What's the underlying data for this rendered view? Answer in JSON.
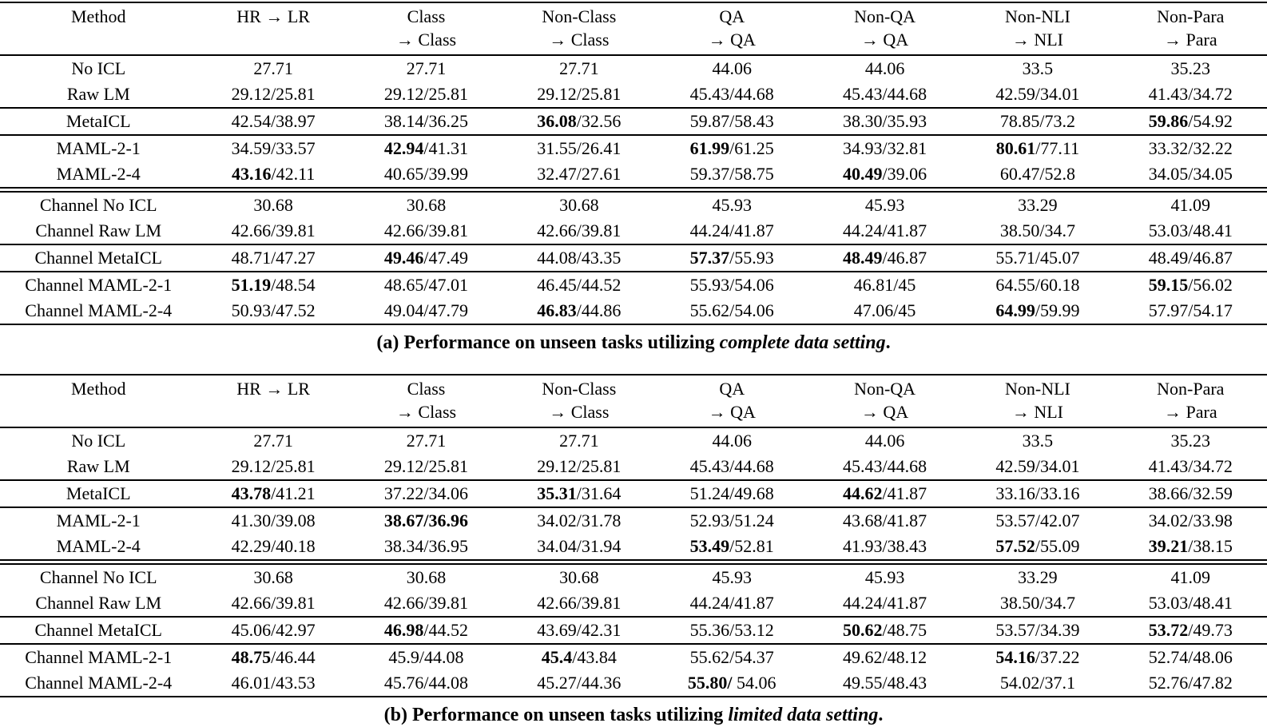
{
  "colors": {
    "background": "#ffffff",
    "text": "#000000"
  },
  "tables": [
    {
      "name": "complete-data-setting-table",
      "columns": [
        {
          "line1": "Method",
          "line2": ""
        },
        {
          "line1": "HR → LR",
          "line2": ""
        },
        {
          "line1": "Class",
          "line2": "→ Class"
        },
        {
          "line1": "Non-Class",
          "line2": "→ Class"
        },
        {
          "line1": "QA",
          "line2": "→ QA"
        },
        {
          "line1": "Non-QA",
          "line2": "→ QA"
        },
        {
          "line1": "Non-NLI",
          "line2": "→ NLI"
        },
        {
          "line1": "Non-Para",
          "line2": "→ Para"
        }
      ],
      "groups": [
        {
          "top_rule": "single",
          "rows": [
            {
              "method": "No ICL",
              "cells": [
                "27.71",
                "27.71",
                "27.71",
                "44.06",
                "44.06",
                "33.5",
                "35.23"
              ]
            },
            {
              "method": "Raw LM",
              "cells": [
                "29.12/25.81",
                "29.12/25.81",
                "29.12/25.81",
                "45.43/44.68",
                "45.43/44.68",
                "42.59/34.01",
                "41.43/34.72"
              ]
            }
          ]
        },
        {
          "top_rule": "single",
          "rows": [
            {
              "method": "MetaICL",
              "cells": [
                "42.54/38.97",
                "38.14/36.25",
                "**36.08**/32.56",
                "59.87/58.43",
                "38.30/35.93",
                "78.85/73.2",
                "**59.86**/54.92"
              ]
            }
          ]
        },
        {
          "top_rule": "single",
          "rows": [
            {
              "method": "MAML-2-1",
              "cells": [
                "34.59/33.57",
                "**42.94**/41.31",
                "31.55/26.41",
                "**61.99**/61.25",
                "34.93/32.81",
                "**80.61**/77.11",
                "33.32/32.22"
              ]
            },
            {
              "method": "MAML-2-4",
              "cells": [
                "**43.16**/42.11",
                "40.65/39.99",
                "32.47/27.61",
                "59.37/58.75",
                "**40.49**/39.06",
                "60.47/52.8",
                "34.05/34.05"
              ]
            }
          ]
        },
        {
          "top_rule": "double",
          "rows": [
            {
              "method": "Channel No ICL",
              "cells": [
                "30.68",
                "30.68",
                "30.68",
                "45.93",
                "45.93",
                "33.29",
                "41.09"
              ]
            },
            {
              "method": "Channel Raw LM",
              "cells": [
                "42.66/39.81",
                "42.66/39.81",
                "42.66/39.81",
                "44.24/41.87",
                "44.24/41.87",
                "38.50/34.7",
                "53.03/48.41"
              ]
            }
          ]
        },
        {
          "top_rule": "single",
          "rows": [
            {
              "method": "Channel MetaICL",
              "cells": [
                "48.71/47.27",
                "**49.46**/47.49",
                "44.08/43.35",
                "**57.37**/55.93",
                "**48.49**/46.87",
                "55.71/45.07",
                "48.49/46.87"
              ]
            }
          ]
        },
        {
          "top_rule": "single",
          "rows": [
            {
              "method": "Channel MAML-2-1",
              "cells": [
                "**51.19**/48.54",
                "48.65/47.01",
                "46.45/44.52",
                "55.93/54.06",
                "46.81/45",
                "64.55/60.18",
                "**59.15**/56.02"
              ]
            },
            {
              "method": "Channel MAML-2-4",
              "cells": [
                "50.93/47.52",
                "49.04/47.79",
                "**46.83**/44.86",
                "55.62/54.06",
                "47.06/45",
                "**64.99**/59.99",
                "57.97/54.17"
              ]
            }
          ]
        }
      ],
      "caption": {
        "prefix": "(a) Performance on unseen tasks utilizing ",
        "italic": "complete data setting",
        "suffix": "."
      }
    },
    {
      "name": "limited-data-setting-table",
      "columns": [
        {
          "line1": "Method",
          "line2": ""
        },
        {
          "line1": "HR → LR",
          "line2": ""
        },
        {
          "line1": "Class",
          "line2": "→ Class"
        },
        {
          "line1": "Non-Class",
          "line2": "→ Class"
        },
        {
          "line1": "QA",
          "line2": "→ QA"
        },
        {
          "line1": "Non-QA",
          "line2": "→ QA"
        },
        {
          "line1": "Non-NLI",
          "line2": "→ NLI"
        },
        {
          "line1": "Non-Para",
          "line2": "→ Para"
        }
      ],
      "groups": [
        {
          "top_rule": "single",
          "rows": [
            {
              "method": "No ICL",
              "cells": [
                "27.71",
                "27.71",
                "27.71",
                "44.06",
                "44.06",
                "33.5",
                "35.23"
              ]
            },
            {
              "method": "Raw LM",
              "cells": [
                "29.12/25.81",
                "29.12/25.81",
                "29.12/25.81",
                "45.43/44.68",
                "45.43/44.68",
                "42.59/34.01",
                "41.43/34.72"
              ]
            }
          ]
        },
        {
          "top_rule": "single",
          "rows": [
            {
              "method": "MetaICL",
              "cells": [
                "**43.78**/41.21",
                "37.22/34.06",
                "**35.31**/31.64",
                "51.24/49.68",
                "**44.62**/41.87",
                "33.16/33.16",
                "38.66/32.59"
              ]
            }
          ]
        },
        {
          "top_rule": "single",
          "rows": [
            {
              "method": "MAML-2-1",
              "cells": [
                "41.30/39.08",
                "**38.67/36.96**",
                "34.02/31.78",
                "52.93/51.24",
                "43.68/41.87",
                "53.57/42.07",
                "34.02/33.98"
              ]
            },
            {
              "method": "MAML-2-4",
              "cells": [
                "42.29/40.18",
                "38.34/36.95",
                "34.04/31.94",
                "**53.49**/52.81",
                "41.93/38.43",
                "**57.52**/55.09",
                "**39.21**/38.15"
              ]
            }
          ]
        },
        {
          "top_rule": "double",
          "rows": [
            {
              "method": "Channel No ICL",
              "cells": [
                "30.68",
                "30.68",
                "30.68",
                "45.93",
                "45.93",
                "33.29",
                "41.09"
              ]
            },
            {
              "method": "Channel Raw LM",
              "cells": [
                "42.66/39.81",
                "42.66/39.81",
                "42.66/39.81",
                "44.24/41.87",
                "44.24/41.87",
                "38.50/34.7",
                "53.03/48.41"
              ]
            }
          ]
        },
        {
          "top_rule": "single",
          "rows": [
            {
              "method": "Channel MetaICL",
              "cells": [
                "45.06/42.97",
                "**46.98**/44.52",
                "43.69/42.31",
                "55.36/53.12",
                "**50.62**/48.75",
                "53.57/34.39",
                "**53.72**/49.73"
              ]
            }
          ]
        },
        {
          "top_rule": "single",
          "rows": [
            {
              "method": "Channel MAML-2-1",
              "cells": [
                "**48.75**/46.44",
                "45.9/44.08",
                "**45.4**/43.84",
                "55.62/54.37",
                "49.62/48.12",
                "**54.16**/37.22",
                "52.74/48.06"
              ]
            },
            {
              "method": "Channel MAML-2-4",
              "cells": [
                "46.01/43.53",
                "45.76/44.08",
                "45.27/44.36",
                "**55.80/** 54.06",
                "49.55/48.43",
                "54.02/37.1",
                "52.76/47.82"
              ]
            }
          ]
        }
      ],
      "caption": {
        "prefix": "(b) Performance on unseen tasks utilizing ",
        "italic": "limited data setting",
        "suffix": "."
      }
    }
  ]
}
